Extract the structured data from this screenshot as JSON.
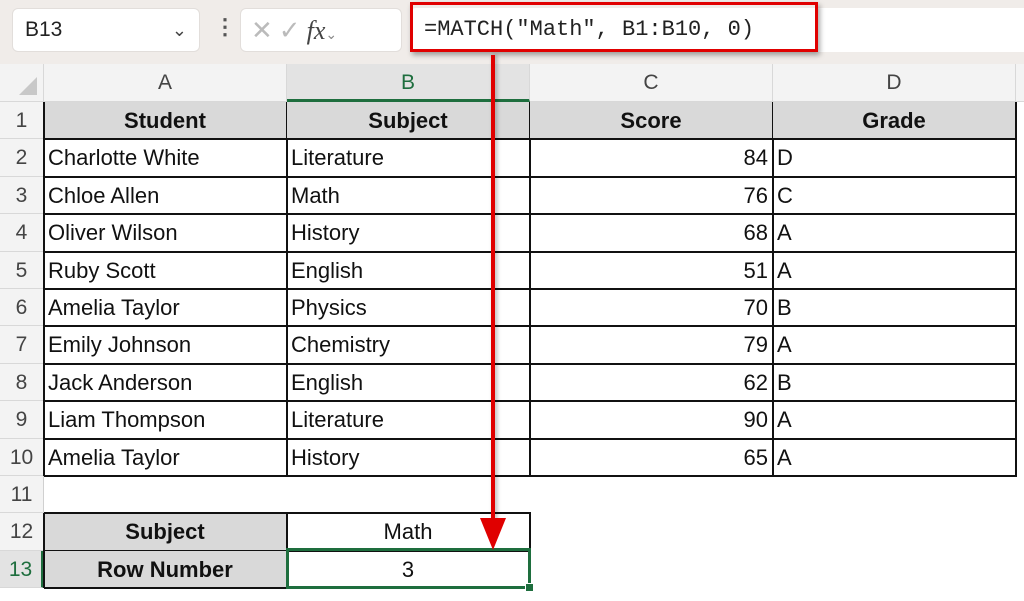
{
  "formula_bar": {
    "name_box": "B13",
    "formula": "=MATCH(\"Math\", B1:B10, 0)",
    "fx_label": "fx"
  },
  "columns": [
    "A",
    "B",
    "C",
    "D"
  ],
  "rows": [
    "1",
    "2",
    "3",
    "4",
    "5",
    "6",
    "7",
    "8",
    "9",
    "10",
    "11",
    "12",
    "13"
  ],
  "table": {
    "headers": [
      "Student",
      "Subject",
      "Score",
      "Grade"
    ],
    "data": [
      [
        "Charlotte White",
        "Literature",
        "84",
        "D"
      ],
      [
        "Chloe Allen",
        "Math",
        "76",
        "C"
      ],
      [
        "Oliver Wilson",
        "History",
        "68",
        "A"
      ],
      [
        "Ruby Scott",
        "English",
        "51",
        "A"
      ],
      [
        "Amelia Taylor",
        "Physics",
        "70",
        "B"
      ],
      [
        "Emily Johnson",
        "Chemistry",
        "79",
        "A"
      ],
      [
        "Jack Anderson",
        "English",
        "62",
        "B"
      ],
      [
        "Liam Thompson",
        "Literature",
        "90",
        "A"
      ],
      [
        "Amelia Taylor",
        "History",
        "65",
        "A"
      ]
    ]
  },
  "lookup": {
    "subject_label": "Subject",
    "subject_value": "Math",
    "row_label": "Row Number",
    "row_value": "3"
  },
  "colors": {
    "selection": "#1e6e3e",
    "annotation": "#e00000"
  }
}
